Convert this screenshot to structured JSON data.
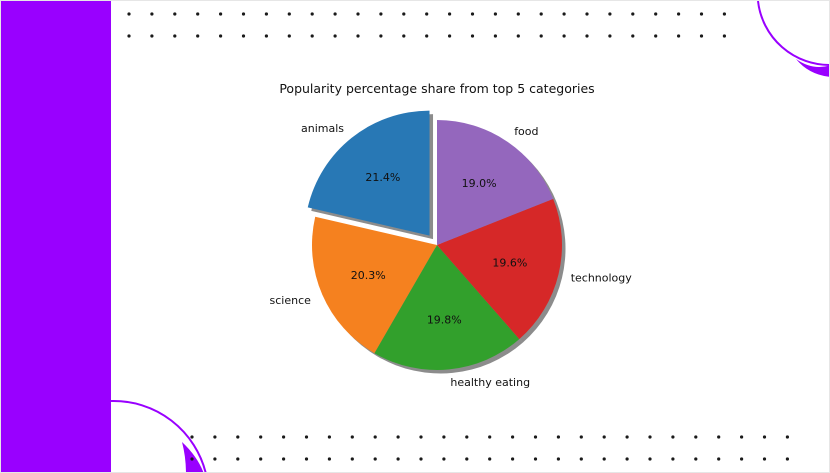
{
  "slide": {
    "accent_color": "#9900ff",
    "dot_color": "#1a1a1a",
    "background_color": "#ffffff"
  },
  "chart_data": {
    "type": "pie",
    "title": "Popularity percentage share from top 5 categories",
    "categories": [
      "animals",
      "science",
      "healthy eating",
      "technology",
      "food"
    ],
    "values": [
      21.4,
      20.3,
      19.8,
      19.6,
      19.0
    ],
    "value_labels": [
      "21.4%",
      "20.3%",
      "19.8%",
      "19.6%",
      "19.0%"
    ],
    "colors": [
      "#2878b5",
      "#f5811f",
      "#32a02c",
      "#d62828",
      "#9467bd"
    ],
    "start_angle_deg": 90,
    "direction": "counterclockwise",
    "exploded": [
      "animals"
    ],
    "shadow": true
  }
}
